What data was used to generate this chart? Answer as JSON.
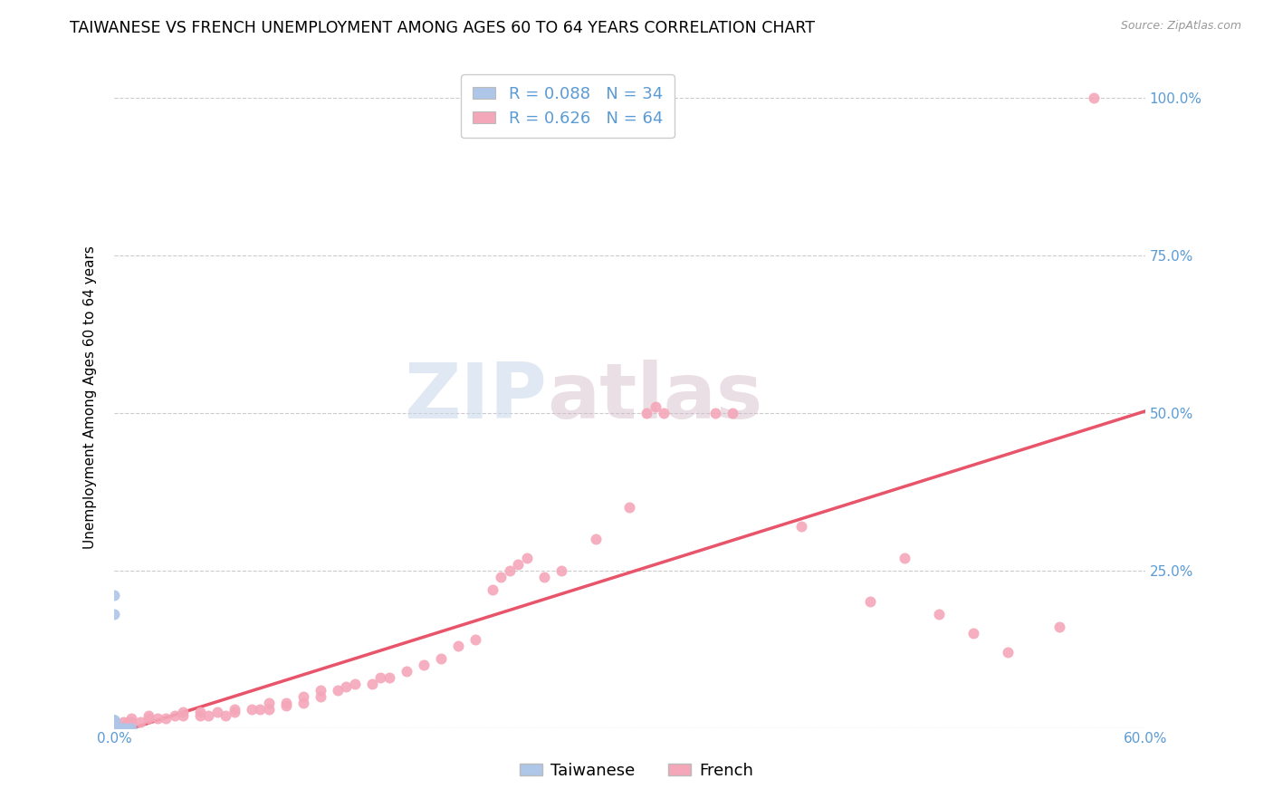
{
  "title": "TAIWANESE VS FRENCH UNEMPLOYMENT AMONG AGES 60 TO 64 YEARS CORRELATION CHART",
  "source": "Source: ZipAtlas.com",
  "ylabel": "Unemployment Among Ages 60 to 64 years",
  "xlim": [
    0.0,
    0.6
  ],
  "ylim": [
    0.0,
    1.05
  ],
  "ytick_positions": [
    0.0,
    0.25,
    0.5,
    0.75,
    1.0
  ],
  "yticklabels": [
    "",
    "25.0%",
    "50.0%",
    "75.0%",
    "100.0%"
  ],
  "taiwan_R": 0.088,
  "taiwan_N": 34,
  "france_R": 0.626,
  "france_N": 64,
  "taiwan_color": "#aec6e8",
  "france_color": "#f4a7b9",
  "taiwan_trend_color": "#9abfd6",
  "france_trend_color": "#e8546a",
  "background_color": "#ffffff",
  "grid_color": "#cccccc",
  "taiwan_x": [
    0.0,
    0.0,
    0.0,
    0.0,
    0.0,
    0.0,
    0.0,
    0.0,
    0.0,
    0.0,
    0.0,
    0.0,
    0.0,
    0.0,
    0.0,
    0.0,
    0.0,
    0.0,
    0.0,
    0.0,
    0.0,
    0.0,
    0.0,
    0.0,
    0.0,
    0.0,
    0.0,
    0.0,
    0.003,
    0.004,
    0.005,
    0.006,
    0.008,
    0.01
  ],
  "taiwan_y": [
    0.0,
    0.0,
    0.0,
    0.0,
    0.0,
    0.0,
    0.0,
    0.0,
    0.003,
    0.003,
    0.005,
    0.005,
    0.007,
    0.007,
    0.008,
    0.009,
    0.01,
    0.01,
    0.011,
    0.011,
    0.012,
    0.012,
    0.012,
    0.013,
    0.013,
    0.013,
    0.18,
    0.21,
    0.0,
    0.0,
    0.0,
    0.0,
    0.0,
    0.0
  ],
  "france_x": [
    0.0,
    0.0,
    0.005,
    0.008,
    0.01,
    0.01,
    0.015,
    0.02,
    0.02,
    0.025,
    0.03,
    0.035,
    0.04,
    0.04,
    0.05,
    0.05,
    0.055,
    0.06,
    0.065,
    0.07,
    0.07,
    0.08,
    0.085,
    0.09,
    0.09,
    0.1,
    0.1,
    0.11,
    0.11,
    0.12,
    0.12,
    0.13,
    0.135,
    0.14,
    0.15,
    0.155,
    0.16,
    0.17,
    0.18,
    0.19,
    0.2,
    0.21,
    0.22,
    0.225,
    0.23,
    0.235,
    0.24,
    0.25,
    0.26,
    0.28,
    0.3,
    0.31,
    0.315,
    0.32,
    0.35,
    0.36,
    0.4,
    0.44,
    0.46,
    0.48,
    0.5,
    0.52,
    0.55,
    0.57
  ],
  "france_y": [
    0.005,
    0.01,
    0.01,
    0.01,
    0.01,
    0.015,
    0.01,
    0.015,
    0.02,
    0.015,
    0.015,
    0.02,
    0.02,
    0.025,
    0.02,
    0.025,
    0.02,
    0.025,
    0.02,
    0.025,
    0.03,
    0.03,
    0.03,
    0.03,
    0.04,
    0.035,
    0.04,
    0.04,
    0.05,
    0.05,
    0.06,
    0.06,
    0.065,
    0.07,
    0.07,
    0.08,
    0.08,
    0.09,
    0.1,
    0.11,
    0.13,
    0.14,
    0.22,
    0.24,
    0.25,
    0.26,
    0.27,
    0.24,
    0.25,
    0.3,
    0.35,
    0.5,
    0.51,
    0.5,
    0.5,
    0.5,
    0.32,
    0.2,
    0.27,
    0.18,
    0.15,
    0.12,
    0.16,
    1.0
  ],
  "marker_size": 75,
  "title_fontsize": 12.5,
  "label_fontsize": 11,
  "tick_fontsize": 11,
  "legend_fontsize": 13,
  "axis_color": "#5b9bd5",
  "watermark_zip": "ZIP",
  "watermark_atlas": "atlas"
}
